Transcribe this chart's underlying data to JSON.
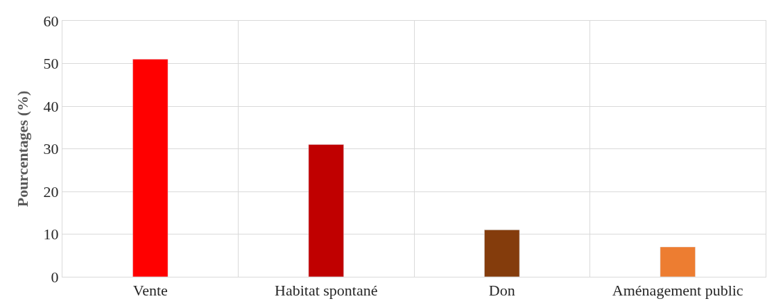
{
  "chart_data": {
    "type": "bar",
    "ylabel": "Pourcentages (%)",
    "categories": [
      "Vente",
      "Habitat spontané",
      "Don",
      "Aménagement public"
    ],
    "values": [
      51,
      31,
      11,
      7
    ],
    "colors": [
      "#ff0000",
      "#c00000",
      "#843c0c",
      "#ed7d31"
    ],
    "ylim": [
      0,
      60
    ],
    "yticks": [
      0,
      10,
      20,
      30,
      40,
      50,
      60
    ],
    "grid": true
  }
}
